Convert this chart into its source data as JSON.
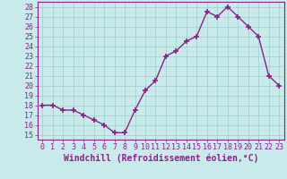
{
  "hours": [
    0,
    1,
    2,
    3,
    4,
    5,
    6,
    7,
    8,
    9,
    10,
    11,
    12,
    13,
    14,
    15,
    16,
    17,
    18,
    19,
    20,
    21,
    22,
    23
  ],
  "values": [
    18,
    18,
    17.5,
    17.5,
    17,
    16.5,
    16,
    15.2,
    15.2,
    17.5,
    19.5,
    20.5,
    23,
    23.5,
    24.5,
    25,
    27.5,
    27,
    28,
    27,
    26,
    25,
    21,
    20
  ],
  "line_color": "#882288",
  "marker": "+",
  "marker_size": 4,
  "marker_lw": 1.2,
  "line_width": 1.0,
  "bg_color": "#c8eaea",
  "grid_color": "#a0cccc",
  "xlabel": "Windchill (Refroidissement éolien,°C)",
  "ylim": [
    14.5,
    28.5
  ],
  "yticks": [
    15,
    16,
    17,
    18,
    19,
    20,
    21,
    22,
    23,
    24,
    25,
    26,
    27,
    28
  ],
  "xlim": [
    -0.5,
    23.5
  ],
  "xlabel_fontsize": 7,
  "tick_fontsize": 6,
  "label_color": "#882288",
  "spine_color": "#882288"
}
